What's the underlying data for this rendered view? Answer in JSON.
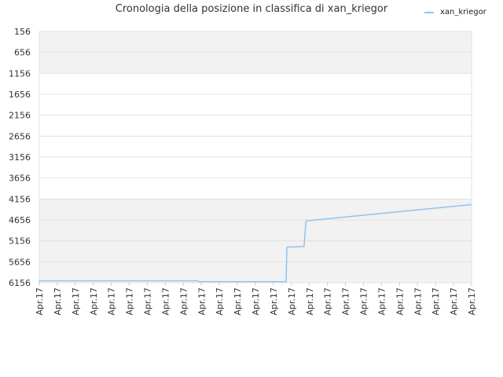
{
  "chart_data": {
    "type": "line",
    "title": "Cronologia della posizione in classifica di xan_kriegor",
    "xlabel": "",
    "ylabel": "",
    "y_inverted": true,
    "ylim": [
      6156,
      156
    ],
    "y_ticks": [
      156,
      656,
      1156,
      1656,
      2156,
      2656,
      3156,
      3656,
      4156,
      4656,
      5156,
      5656,
      6156
    ],
    "x_ticks": [
      "Apr.17",
      "Apr.17",
      "Apr.17",
      "Apr.17",
      "Apr.17",
      "Apr.17",
      "Apr.17",
      "Apr.17",
      "Apr.17",
      "Apr.17",
      "Apr.17",
      "Apr.17",
      "Apr.17",
      "Apr.17",
      "Apr.17",
      "Apr.17",
      "Apr.17",
      "Apr.17",
      "Apr.17",
      "Apr.17",
      "Apr.17",
      "Apr.17",
      "Apr.17",
      "Apr.17",
      "Apr.17"
    ],
    "grid": true,
    "legend": "top-right",
    "series": [
      {
        "name": "xan_kriegor",
        "color": "#90c4f0",
        "x": [
          0,
          0.02,
          8.8,
          8.85,
          13.7,
          13.75,
          14.7,
          14.75,
          14.8,
          14.85,
          15.0,
          24.0
        ],
        "y": [
          6146,
          6110,
          6110,
          6130,
          6130,
          5305,
          5290,
          5000,
          4700,
          4680,
          4670,
          4290
        ]
      }
    ]
  }
}
